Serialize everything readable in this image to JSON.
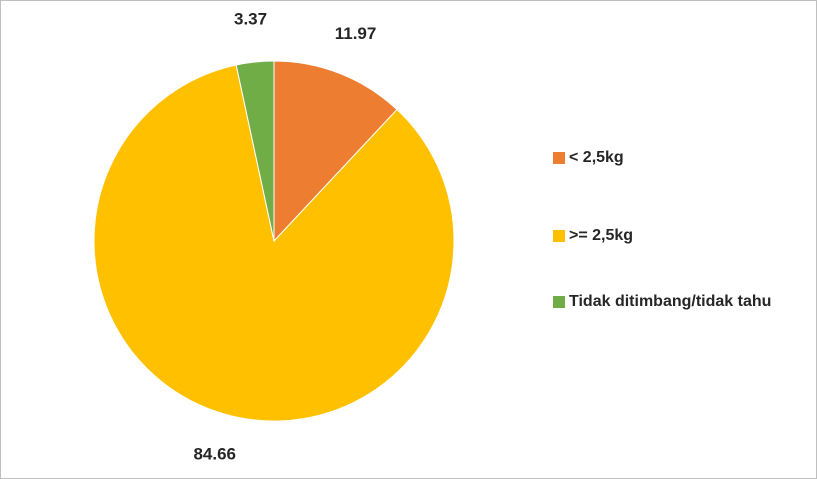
{
  "chart_data": {
    "type": "pie",
    "categories": [
      "< 2,5kg",
      ">= 2,5kg",
      "Tidak ditimbang/tidak tahu"
    ],
    "values": [
      11.97,
      84.66,
      3.37
    ],
    "colors": [
      "#ED7D31",
      "#FFC000",
      "#70AD47"
    ],
    "legend": "right"
  }
}
